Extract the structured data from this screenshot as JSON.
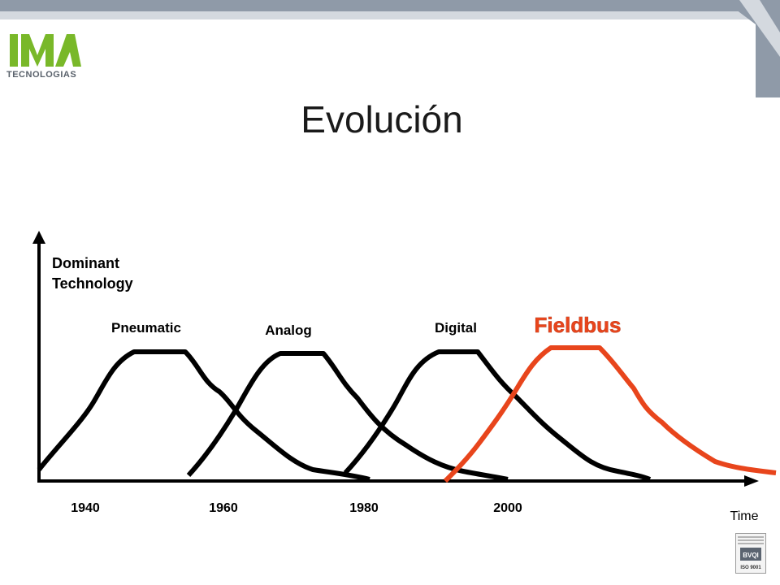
{
  "slide": {
    "title": "Evolución",
    "logo": {
      "text": "TECNOLOGIAS"
    }
  },
  "diagram": {
    "y_axis_label": [
      "Dominant",
      "Technology"
    ],
    "x_axis_label": "Time",
    "years": [
      "1940",
      "1960",
      "1980",
      "2000"
    ],
    "eras": [
      {
        "name": "Pneumatic",
        "color": "#000000"
      },
      {
        "name": "Analog",
        "color": "#000000"
      },
      {
        "name": "Digital",
        "color": "#000000"
      },
      {
        "name": "Fieldbus",
        "color": "#e8451c"
      }
    ]
  },
  "badge": {
    "text": [
      "BVQI",
      "ISO 9001"
    ]
  },
  "colors": {
    "accent": "#e8451c",
    "header": "#8f9aa8"
  }
}
